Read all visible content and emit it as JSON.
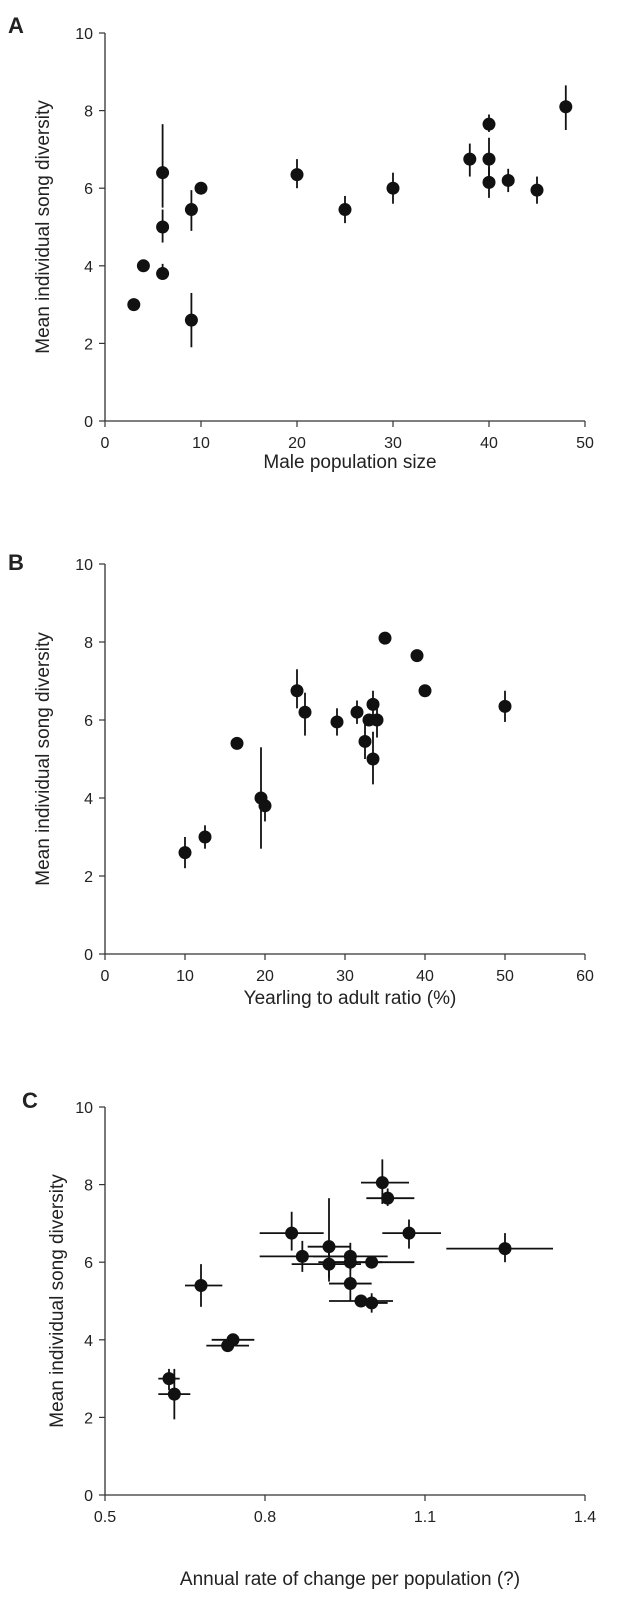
{
  "colors": {
    "ink": "#111111",
    "axis": "#333333",
    "text": "#222222"
  },
  "chart_data": [
    {
      "type": "scatter",
      "panel": "A",
      "xlabel": "Male population size",
      "ylabel": "Mean individual song diversity",
      "xlim": [
        0,
        50
      ],
      "ylim": [
        0,
        10
      ],
      "xticks": [
        "0",
        "10",
        "20",
        "30",
        "40",
        "50"
      ],
      "yticks": [
        "0",
        "2",
        "4",
        "6",
        "8",
        "10"
      ],
      "grid": false,
      "error_bars": "vertical",
      "points": [
        {
          "x": 3,
          "y": 3.0
        },
        {
          "x": 4,
          "y": 4.0
        },
        {
          "x": 6,
          "y": 6.4,
          "y_err": [
            5.5,
            7.65
          ]
        },
        {
          "x": 6,
          "y": 5.0,
          "y_err": [
            4.6,
            5.45
          ]
        },
        {
          "x": 6,
          "y": 3.8,
          "y_err": [
            3.65,
            4.05
          ]
        },
        {
          "x": 9,
          "y": 5.45,
          "y_err": [
            4.9,
            5.95
          ]
        },
        {
          "x": 9,
          "y": 2.6,
          "y_err": [
            1.9,
            3.3
          ]
        },
        {
          "x": 10,
          "y": 6.0
        },
        {
          "x": 20,
          "y": 6.35,
          "y_err": [
            6.0,
            6.75
          ]
        },
        {
          "x": 25,
          "y": 5.45,
          "y_err": [
            5.1,
            5.8
          ]
        },
        {
          "x": 30,
          "y": 6.0,
          "y_err": [
            5.6,
            6.4
          ]
        },
        {
          "x": 38,
          "y": 6.75,
          "y_err": [
            6.3,
            7.15
          ]
        },
        {
          "x": 40,
          "y": 7.65,
          "y_err": [
            7.45,
            7.9
          ]
        },
        {
          "x": 40,
          "y": 6.75,
          "y_err": [
            6.3,
            7.3
          ]
        },
        {
          "x": 40,
          "y": 6.15,
          "y_err": [
            5.75,
            6.55
          ]
        },
        {
          "x": 42,
          "y": 6.2,
          "y_err": [
            5.9,
            6.5
          ]
        },
        {
          "x": 45,
          "y": 5.95,
          "y_err": [
            5.6,
            6.3
          ]
        },
        {
          "x": 48,
          "y": 8.1,
          "y_err": [
            7.5,
            8.65
          ]
        }
      ]
    },
    {
      "type": "scatter",
      "panel": "B",
      "xlabel": "Yearling to adult ratio (%)",
      "ylabel": "Mean individual song diversity",
      "xlim": [
        0,
        60
      ],
      "ylim": [
        0,
        10
      ],
      "xticks": [
        "0",
        "10",
        "20",
        "30",
        "40",
        "50",
        "60"
      ],
      "yticks": [
        "0",
        "2",
        "4",
        "6",
        "8",
        "10"
      ],
      "grid": false,
      "error_bars": "vertical",
      "points": [
        {
          "x": 10,
          "y": 2.6,
          "y_err": [
            2.2,
            3.0
          ]
        },
        {
          "x": 12.5,
          "y": 3.0,
          "y_err": [
            2.7,
            3.3
          ]
        },
        {
          "x": 16.5,
          "y": 5.4
        },
        {
          "x": 19.5,
          "y": 4.0,
          "y_err": [
            2.7,
            5.3
          ]
        },
        {
          "x": 20,
          "y": 3.8,
          "y_err": [
            3.4,
            4.1
          ]
        },
        {
          "x": 24,
          "y": 6.75,
          "y_err": [
            6.3,
            7.3
          ]
        },
        {
          "x": 25,
          "y": 6.2,
          "y_err": [
            5.6,
            6.7
          ]
        },
        {
          "x": 29,
          "y": 5.95,
          "y_err": [
            5.6,
            6.3
          ]
        },
        {
          "x": 31.5,
          "y": 6.2,
          "y_err": [
            5.9,
            6.5
          ]
        },
        {
          "x": 32.5,
          "y": 5.45,
          "y_err": [
            5.0,
            5.9
          ]
        },
        {
          "x": 33,
          "y": 6.0
        },
        {
          "x": 33.5,
          "y": 6.4,
          "y_err": [
            6.0,
            6.75
          ]
        },
        {
          "x": 33.5,
          "y": 5.0,
          "y_err": [
            4.35,
            5.7
          ]
        },
        {
          "x": 34,
          "y": 6.0,
          "y_err": [
            5.55,
            6.4
          ]
        },
        {
          "x": 35,
          "y": 8.1
        },
        {
          "x": 39,
          "y": 7.65
        },
        {
          "x": 40,
          "y": 6.75
        },
        {
          "x": 50,
          "y": 6.35,
          "y_err": [
            5.95,
            6.75
          ]
        }
      ]
    },
    {
      "type": "scatter",
      "panel": "C",
      "xlabel": "Annual rate of change per population (?)",
      "ylabel": "Mean individual song diversity",
      "xlim": [
        0.5,
        1.4
      ],
      "ylim": [
        0,
        10
      ],
      "xticks": [
        "0.5",
        "0.8",
        "1.1",
        "1.4"
      ],
      "yticks": [
        "0",
        "2",
        "4",
        "6",
        "8",
        "10"
      ],
      "grid": false,
      "error_bars": "both",
      "points": [
        {
          "x": 0.62,
          "y": 3.0,
          "x_err": [
            0.6,
            0.64
          ],
          "y_err": [
            2.7,
            3.25
          ]
        },
        {
          "x": 0.63,
          "y": 2.6,
          "x_err": [
            0.6,
            0.66
          ],
          "y_err": [
            1.95,
            3.25
          ]
        },
        {
          "x": 0.68,
          "y": 5.4,
          "x_err": [
            0.65,
            0.72
          ],
          "y_err": [
            4.85,
            5.95
          ]
        },
        {
          "x": 0.74,
          "y": 4.0,
          "x_err": [
            0.7,
            0.78
          ]
        },
        {
          "x": 0.73,
          "y": 3.85,
          "x_err": [
            0.69,
            0.77
          ]
        },
        {
          "x": 0.85,
          "y": 6.75,
          "x_err": [
            0.79,
            0.91
          ],
          "y_err": [
            6.3,
            7.3
          ]
        },
        {
          "x": 0.87,
          "y": 6.15,
          "x_err": [
            0.79,
            0.96
          ],
          "y_err": [
            5.75,
            6.55
          ]
        },
        {
          "x": 0.92,
          "y": 6.4,
          "x_err": [
            0.88,
            0.96
          ],
          "y_err": [
            5.5,
            7.65
          ]
        },
        {
          "x": 0.92,
          "y": 5.95,
          "x_err": [
            0.85,
            0.98
          ],
          "y_err": [
            5.6,
            6.35
          ]
        },
        {
          "x": 0.96,
          "y": 6.15,
          "x_err": [
            0.89,
            1.03
          ],
          "y_err": [
            5.8,
            6.5
          ]
        },
        {
          "x": 0.96,
          "y": 6.0,
          "x_err": [
            0.9,
            1.02
          ]
        },
        {
          "x": 1.0,
          "y": 6.0,
          "x_err": [
            0.92,
            1.08
          ]
        },
        {
          "x": 0.96,
          "y": 5.45,
          "x_err": [
            0.92,
            1.0
          ],
          "y_err": [
            5.0,
            5.9
          ]
        },
        {
          "x": 0.98,
          "y": 5.0,
          "x_err": [
            0.92,
            1.04
          ]
        },
        {
          "x": 1.0,
          "y": 4.95,
          "x_err": [
            0.97,
            1.03
          ],
          "y_err": [
            4.7,
            5.2
          ]
        },
        {
          "x": 1.02,
          "y": 8.05,
          "x_err": [
            0.98,
            1.07
          ],
          "y_err": [
            7.5,
            8.65
          ]
        },
        {
          "x": 1.03,
          "y": 7.65,
          "x_err": [
            0.99,
            1.08
          ],
          "y_err": [
            7.45,
            7.9
          ]
        },
        {
          "x": 1.07,
          "y": 6.75,
          "x_err": [
            1.02,
            1.13
          ],
          "y_err": [
            6.35,
            7.1
          ]
        },
        {
          "x": 1.25,
          "y": 6.35,
          "x_err": [
            1.14,
            1.34
          ],
          "y_err": [
            6.0,
            6.75
          ]
        }
      ]
    }
  ]
}
